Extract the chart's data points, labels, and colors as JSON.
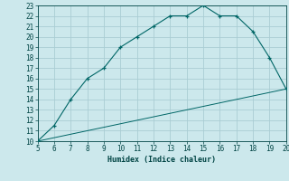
{
  "title": "",
  "xlabel": "Humidex (Indice chaleur)",
  "bg_color": "#cce8ec",
  "grid_color": "#aacdd4",
  "line_color": "#006666",
  "xlim": [
    5,
    20
  ],
  "ylim": [
    10,
    23
  ],
  "xticks": [
    5,
    6,
    7,
    8,
    9,
    10,
    11,
    12,
    13,
    14,
    15,
    16,
    17,
    18,
    19,
    20
  ],
  "yticks": [
    10,
    11,
    12,
    13,
    14,
    15,
    16,
    17,
    18,
    19,
    20,
    21,
    22,
    23
  ],
  "curve_x": [
    5,
    6,
    7,
    8,
    9,
    10,
    11,
    12,
    13,
    14,
    15,
    16,
    17,
    18,
    19,
    20
  ],
  "curve_y": [
    10,
    11.5,
    14,
    16,
    17,
    19,
    20,
    21,
    22,
    22,
    23,
    22,
    22,
    20.5,
    18,
    15
  ],
  "line2_x": [
    5,
    20
  ],
  "line2_y": [
    10,
    15
  ]
}
